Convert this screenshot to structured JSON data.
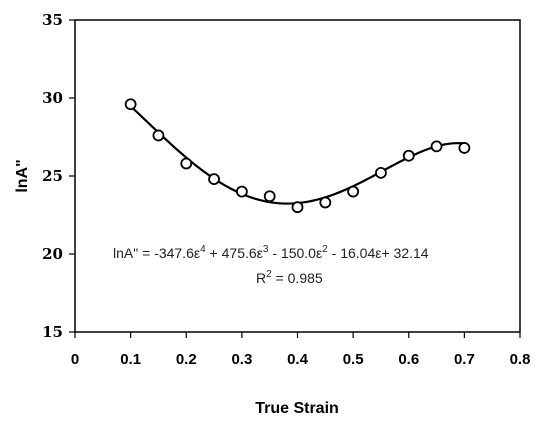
{
  "chart_data": {
    "type": "scatter",
    "xlabel": "True Strain",
    "ylabel": "lnA\"",
    "xlim": [
      0,
      0.8
    ],
    "ylim": [
      15,
      35
    ],
    "x_ticks": [
      "0",
      "0.1",
      "0.2",
      "0.3",
      "0.4",
      "0.5",
      "0.6",
      "0.7",
      "0.8"
    ],
    "y_ticks": [
      "15",
      "20",
      "25",
      "30",
      "35"
    ],
    "grid": false,
    "legend": "none",
    "points": {
      "x": [
        0.1,
        0.15,
        0.2,
        0.25,
        0.3,
        0.35,
        0.4,
        0.45,
        0.5,
        0.55,
        0.6,
        0.65,
        0.7
      ],
      "y": [
        29.6,
        27.6,
        25.8,
        24.8,
        24.0,
        23.7,
        23.0,
        23.3,
        24.0,
        25.2,
        26.3,
        26.9,
        26.8
      ]
    },
    "fit": {
      "type": "polynomial",
      "coefficients_high_to_low": [
        -347.6,
        475.6,
        -150.0,
        -16.04,
        32.14
      ],
      "x_range": [
        0.1,
        0.7
      ]
    },
    "annotations": {
      "equation_prefix": "lnA\"  = -347.6ε",
      "sup4": "4",
      "eq_part2": " + 475.6ε",
      "sup3": "3",
      "eq_part3": " - 150.0ε",
      "sup2a": "2",
      "eq_part4": " - 16.04ε+ 32.14",
      "r2_prefix": "R",
      "sup2b": "2",
      "r2_suffix": " = 0.985"
    },
    "colors": {
      "axis": "#000000",
      "points": "#000000",
      "fit_line": "#000000"
    }
  }
}
